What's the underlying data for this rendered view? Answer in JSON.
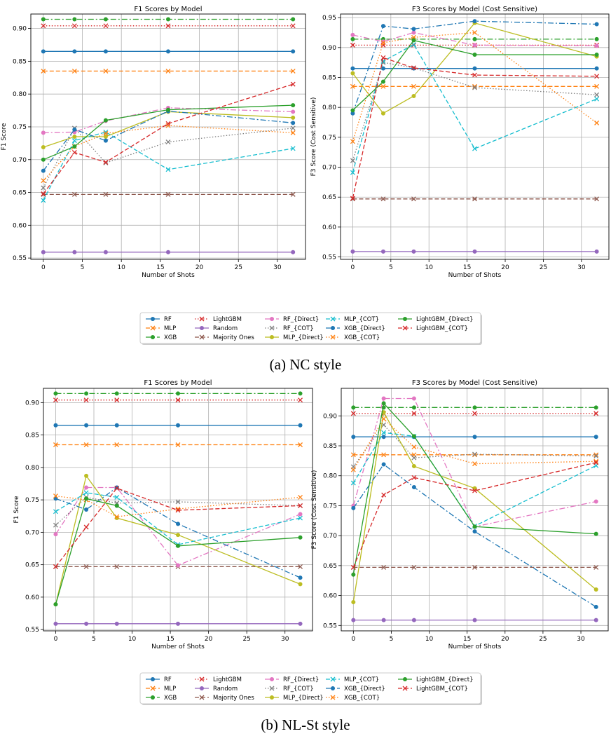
{
  "captions": {
    "a": "(a) NC style",
    "b": "(b) NL-St style"
  },
  "colors": {
    "RF": "#1f77b4",
    "MLP": "#ff7f0e",
    "XGB": "#2ca02c",
    "LightGBM": "#d62728",
    "Random": "#9467bd",
    "Majority Ones": "#8c564b",
    "RF_{Direct}": "#e377c2",
    "RF_{COT}": "#7f7f7f",
    "MLP_{Direct}": "#bcbd22",
    "MLP_{COT}": "#17becf",
    "XGB_{Direct}": "#1f77b4",
    "XGB_{COT}": "#ff7f0e",
    "LightGBM_{Direct}": "#2ca02c",
    "LightGBM_{COT}": "#d62728"
  },
  "legend_order": [
    "RF",
    "MLP",
    "XGB",
    "LightGBM",
    "Random",
    "Majority Ones",
    "RF_{Direct}",
    "RF_{COT}",
    "MLP_{Direct}",
    "MLP_{COT}",
    "XGB_{Direct}",
    "XGB_{COT}",
    "LightGBM_{Direct}",
    "LightGBM_{COT}"
  ],
  "chart_data": [
    {
      "id": "nc-f1",
      "type": "line",
      "title": "F1 Scores by Model",
      "xlabel": "Number of Shots",
      "ylabel": "F1 Score",
      "x": [
        0,
        4,
        8,
        16,
        32
      ],
      "xlim": [
        -1.6,
        33.6
      ],
      "ylim": [
        0.548,
        0.922
      ],
      "xticks": [
        0,
        5,
        10,
        15,
        20,
        25,
        30
      ],
      "yticks": [
        0.55,
        0.6,
        0.65,
        0.7,
        0.75,
        0.8,
        0.85,
        0.9
      ],
      "series": [
        {
          "name": "RF",
          "values": [
            0.865,
            0.865,
            0.865,
            0.865,
            0.865
          ]
        },
        {
          "name": "MLP",
          "values": [
            0.835,
            0.835,
            0.835,
            0.835,
            0.835
          ]
        },
        {
          "name": "XGB",
          "values": [
            0.914,
            0.914,
            0.914,
            0.914,
            0.914
          ]
        },
        {
          "name": "LightGBM",
          "values": [
            0.904,
            0.904,
            0.904,
            0.904,
            0.904
          ]
        },
        {
          "name": "Random",
          "values": [
            0.559,
            0.559,
            0.559,
            0.559,
            0.559
          ]
        },
        {
          "name": "Majority Ones",
          "values": [
            0.647,
            0.647,
            0.647,
            0.647,
            0.647
          ]
        },
        {
          "name": "RF_{Direct}",
          "values": [
            0.741,
            0.742,
            0.759,
            0.779,
            0.773
          ]
        },
        {
          "name": "RF_{COT}",
          "values": [
            0.657,
            0.748,
            0.695,
            0.727,
            0.748
          ]
        },
        {
          "name": "MLP_{Direct}",
          "values": [
            0.719,
            0.735,
            0.735,
            0.773,
            0.764
          ]
        },
        {
          "name": "MLP_{COT}",
          "values": [
            0.638,
            0.729,
            0.742,
            0.685,
            0.717
          ]
        },
        {
          "name": "XGB_{Direct}",
          "values": [
            0.683,
            0.746,
            0.729,
            0.774,
            0.756
          ]
        },
        {
          "name": "XGB_{COT}",
          "values": [
            0.668,
            0.72,
            0.74,
            0.752,
            0.741
          ]
        },
        {
          "name": "LightGBM_{Direct}",
          "values": [
            0.7,
            0.72,
            0.76,
            0.776,
            0.783
          ]
        },
        {
          "name": "LightGBM_{COT}",
          "values": [
            0.648,
            0.711,
            0.696,
            0.755,
            0.815
          ]
        }
      ]
    },
    {
      "id": "nc-f3",
      "type": "line",
      "title": "F3 Scores by Model (Cost Sensitive)",
      "xlabel": "Number of Shots",
      "ylabel": "F3 Score (Cost Sensitive)",
      "x": [
        0,
        4,
        8,
        16,
        32
      ],
      "xlim": [
        -1.6,
        33.6
      ],
      "ylim": [
        0.546,
        0.956
      ],
      "xticks": [
        0,
        5,
        10,
        15,
        20,
        25,
        30
      ],
      "yticks": [
        0.55,
        0.6,
        0.65,
        0.7,
        0.75,
        0.8,
        0.85,
        0.9,
        0.95
      ],
      "series": [
        {
          "name": "RF",
          "values": [
            0.865,
            0.865,
            0.865,
            0.865,
            0.865
          ]
        },
        {
          "name": "MLP",
          "values": [
            0.835,
            0.835,
            0.835,
            0.835,
            0.835
          ]
        },
        {
          "name": "XGB",
          "values": [
            0.914,
            0.914,
            0.914,
            0.914,
            0.914
          ]
        },
        {
          "name": "LightGBM",
          "values": [
            0.904,
            0.904,
            0.904,
            0.904,
            0.904
          ]
        },
        {
          "name": "Random",
          "values": [
            0.559,
            0.559,
            0.559,
            0.559,
            0.559
          ]
        },
        {
          "name": "Majority Ones",
          "values": [
            0.647,
            0.647,
            0.647,
            0.647,
            0.647
          ]
        },
        {
          "name": "RF_{Direct}",
          "values": [
            0.921,
            0.91,
            0.925,
            0.904,
            0.903
          ]
        },
        {
          "name": "RF_{COT}",
          "values": [
            0.711,
            0.875,
            0.866,
            0.833,
            0.821
          ]
        },
        {
          "name": "MLP_{Direct}",
          "values": [
            0.857,
            0.79,
            0.819,
            0.941,
            0.885
          ]
        },
        {
          "name": "MLP_{COT}",
          "values": [
            0.691,
            0.877,
            0.905,
            0.731,
            0.814
          ]
        },
        {
          "name": "XGB_{Direct}",
          "values": [
            0.79,
            0.936,
            0.931,
            0.944,
            0.939
          ]
        },
        {
          "name": "XGB_{COT}",
          "values": [
            0.743,
            0.908,
            0.917,
            0.925,
            0.774
          ]
        },
        {
          "name": "LightGBM_{Direct}",
          "values": [
            0.795,
            0.843,
            0.912,
            0.888,
            0.888
          ]
        },
        {
          "name": "LightGBM_{COT}",
          "values": [
            0.648,
            0.883,
            0.866,
            0.854,
            0.852
          ]
        }
      ]
    },
    {
      "id": "nlst-f1",
      "type": "line",
      "title": "F1 Scores by Model",
      "xlabel": "Number of Shots",
      "ylabel": "F1 Score",
      "x": [
        0,
        4,
        8,
        16,
        32
      ],
      "xlim": [
        -1.6,
        33.6
      ],
      "ylim": [
        0.548,
        0.922
      ],
      "xticks": [
        0,
        5,
        10,
        15,
        20,
        25,
        30
      ],
      "yticks": [
        0.55,
        0.6,
        0.65,
        0.7,
        0.75,
        0.8,
        0.85,
        0.9
      ],
      "series": [
        {
          "name": "RF",
          "values": [
            0.865,
            0.865,
            0.865,
            0.865,
            0.865
          ]
        },
        {
          "name": "MLP",
          "values": [
            0.835,
            0.835,
            0.835,
            0.835,
            0.835
          ]
        },
        {
          "name": "XGB",
          "values": [
            0.914,
            0.914,
            0.914,
            0.914,
            0.914
          ]
        },
        {
          "name": "LightGBM",
          "values": [
            0.904,
            0.904,
            0.904,
            0.904,
            0.904
          ]
        },
        {
          "name": "Random",
          "values": [
            0.559,
            0.559,
            0.559,
            0.559,
            0.559
          ]
        },
        {
          "name": "Majority Ones",
          "values": [
            0.647,
            0.647,
            0.647,
            0.647,
            0.647
          ]
        },
        {
          "name": "RF_{Direct}",
          "values": [
            0.697,
            0.769,
            0.769,
            0.649,
            0.728
          ]
        },
        {
          "name": "RF_{COT}",
          "values": [
            0.711,
            0.754,
            0.745,
            0.747,
            0.741
          ]
        },
        {
          "name": "MLP_{Direct}",
          "values": [
            0.589,
            0.787,
            0.722,
            0.696,
            0.62
          ]
        },
        {
          "name": "MLP_{COT}",
          "values": [
            0.732,
            0.761,
            0.754,
            0.681,
            0.722
          ]
        },
        {
          "name": "XGB_{Direct}",
          "values": [
            0.752,
            0.735,
            0.769,
            0.713,
            0.63
          ]
        },
        {
          "name": "XGB_{COT}",
          "values": [
            0.756,
            0.75,
            0.724,
            0.736,
            0.754
          ]
        },
        {
          "name": "LightGBM_{Direct}",
          "values": [
            0.589,
            0.752,
            0.741,
            0.679,
            0.692
          ]
        },
        {
          "name": "LightGBM_{COT}",
          "values": [
            0.647,
            0.708,
            0.768,
            0.734,
            0.741
          ]
        }
      ]
    },
    {
      "id": "nlst-f3",
      "type": "line",
      "title": "F3 Scores by Model (Cost Sensitive)",
      "xlabel": "Number of Shots",
      "ylabel": "F3 Score (Cost Sensitive)",
      "x": [
        0,
        4,
        8,
        16,
        32
      ],
      "xlim": [
        -1.6,
        33.6
      ],
      "ylim": [
        0.541,
        0.946
      ],
      "xticks": [
        0,
        5,
        10,
        15,
        20,
        25,
        30
      ],
      "yticks": [
        0.55,
        0.6,
        0.65,
        0.7,
        0.75,
        0.8,
        0.85,
        0.9
      ],
      "series": [
        {
          "name": "RF",
          "values": [
            0.865,
            0.865,
            0.865,
            0.865,
            0.865
          ]
        },
        {
          "name": "MLP",
          "values": [
            0.835,
            0.835,
            0.835,
            0.835,
            0.835
          ]
        },
        {
          "name": "XGB",
          "values": [
            0.914,
            0.914,
            0.914,
            0.914,
            0.914
          ]
        },
        {
          "name": "LightGBM",
          "values": [
            0.904,
            0.904,
            0.904,
            0.904,
            0.904
          ]
        },
        {
          "name": "Random",
          "values": [
            0.559,
            0.559,
            0.559,
            0.559,
            0.559
          ]
        },
        {
          "name": "Majority Ones",
          "values": [
            0.647,
            0.647,
            0.647,
            0.647,
            0.647
          ]
        },
        {
          "name": "RF_{Direct}",
          "values": [
            0.75,
            0.929,
            0.929,
            0.715,
            0.757
          ]
        },
        {
          "name": "RF_{COT}",
          "values": [
            0.815,
            0.885,
            0.83,
            0.836,
            0.833
          ]
        },
        {
          "name": "MLP_{Direct}",
          "values": [
            0.589,
            0.906,
            0.816,
            0.779,
            0.61
          ]
        },
        {
          "name": "MLP_{COT}",
          "values": [
            0.788,
            0.872,
            0.866,
            0.716,
            0.817
          ]
        },
        {
          "name": "XGB_{Direct}",
          "values": [
            0.746,
            0.819,
            0.781,
            0.707,
            0.581
          ]
        },
        {
          "name": "XGB_{COT}",
          "values": [
            0.81,
            0.895,
            0.848,
            0.82,
            0.824
          ]
        },
        {
          "name": "LightGBM_{Direct}",
          "values": [
            0.635,
            0.921,
            0.866,
            0.715,
            0.703
          ]
        },
        {
          "name": "LightGBM_{COT}",
          "values": [
            0.647,
            0.768,
            0.797,
            0.775,
            0.822
          ]
        }
      ]
    }
  ]
}
